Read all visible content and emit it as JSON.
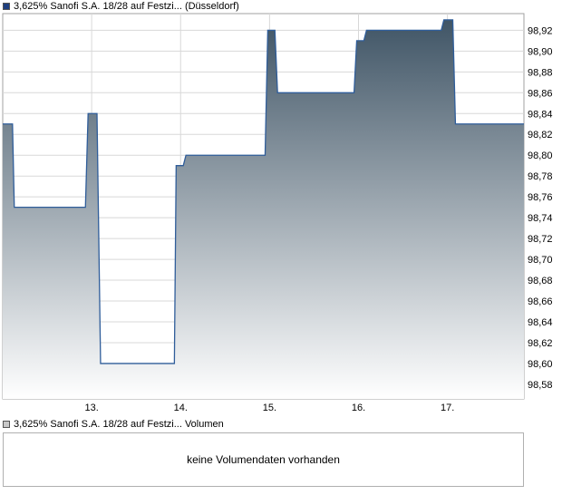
{
  "chart_data": {
    "type": "area",
    "legend": {
      "series_label": "3,625% Sanofi S.A. 18/28 auf Festzi... (Düsseldorf)",
      "series_color": "#1f3f7f"
    },
    "x_ticks": [
      "13.",
      "14.",
      "15.",
      "16.",
      "17."
    ],
    "y_ticks": [
      "98,58",
      "98,60",
      "98,62",
      "98,64",
      "98,66",
      "98,68",
      "98,70",
      "98,72",
      "98,74",
      "98,76",
      "98,78",
      "98,80",
      "98,82",
      "98,84",
      "98,86",
      "98,88",
      "98,90",
      "98,92"
    ],
    "ylim": [
      98.566,
      98.936
    ],
    "xlim": [
      12.0,
      17.86
    ],
    "grid": true,
    "colors": {
      "line": "#2f5d9a",
      "fill_top": "#405566",
      "fill_bottom": "#ffffff",
      "grid": "#d8d8d8",
      "axis": "#a0a0a0"
    },
    "series": [
      {
        "points": [
          [
            12.0,
            98.83
          ],
          [
            12.11,
            98.83
          ],
          [
            12.13,
            98.75
          ],
          [
            12.93,
            98.75
          ],
          [
            12.96,
            98.84
          ],
          [
            13.06,
            98.84
          ],
          [
            13.1,
            98.6
          ],
          [
            13.93,
            98.6
          ],
          [
            13.95,
            98.79
          ],
          [
            14.03,
            98.79
          ],
          [
            14.06,
            98.8
          ],
          [
            14.95,
            98.8
          ],
          [
            14.98,
            98.92
          ],
          [
            15.06,
            98.92
          ],
          [
            15.09,
            98.86
          ],
          [
            15.95,
            98.86
          ],
          [
            15.98,
            98.91
          ],
          [
            16.06,
            98.91
          ],
          [
            16.09,
            98.92
          ],
          [
            16.93,
            98.92
          ],
          [
            16.96,
            98.93
          ],
          [
            17.06,
            98.93
          ],
          [
            17.09,
            98.83
          ],
          [
            17.86,
            98.83
          ]
        ]
      }
    ]
  },
  "volume_panel": {
    "legend_label": "3,625% Sanofi S.A. 18/28 auf Festzi... Volumen",
    "legend_color": "#c8c8c8",
    "message": "keine Volumendaten vorhanden"
  }
}
